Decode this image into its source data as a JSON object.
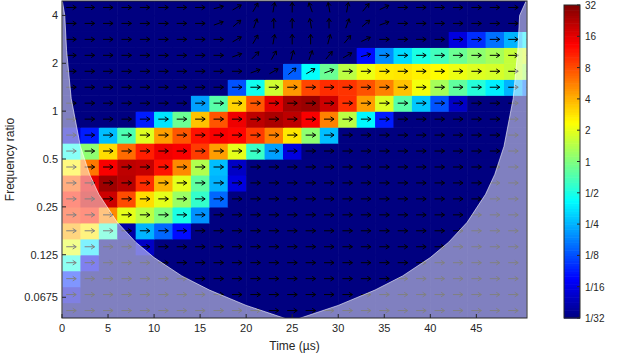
{
  "chart_data": {
    "type": "heatmap",
    "xlabel": "Time (µs)",
    "ylabel": "Frequency ratio",
    "log": "y",
    "xlim": [
      0,
      50.5
    ],
    "ylim": [
      0.05,
      4.93
    ],
    "xticks": [
      0,
      5,
      10,
      15,
      20,
      25,
      30,
      35,
      40,
      45
    ],
    "yticks": [
      0.0675,
      0.125,
      0.25,
      0.5,
      1,
      2,
      4
    ],
    "x": [
      1,
      3,
      5,
      7,
      9,
      11,
      13,
      15,
      17,
      19,
      21,
      23,
      25,
      27,
      29,
      31,
      33,
      35,
      37,
      39,
      41,
      43,
      45,
      47,
      49,
      51
    ],
    "y": [
      0.0557,
      0.0702,
      0.0884,
      0.1114,
      0.1403,
      0.1768,
      0.2227,
      0.2806,
      0.3536,
      0.4454,
      0.5612,
      0.7071,
      0.8909,
      1.1225,
      1.4142,
      1.7818,
      2.2449,
      2.8284,
      3.5636,
      4.4898
    ],
    "z": [
      [
        0.03,
        0.03,
        0.03,
        0.03,
        0.03,
        0.03,
        0.03,
        0.03,
        0.03,
        0.03,
        0.03,
        0.03,
        0.03,
        0.03,
        0.03,
        0.03,
        0.03,
        0.03,
        0.03,
        0.03,
        0.03,
        0.03,
        0.03,
        0.03,
        0.03,
        0.03
      ],
      [
        0.05,
        0.03,
        0.03,
        0.03,
        0.03,
        0.03,
        0.03,
        0.03,
        0.03,
        0.03,
        0.03,
        0.03,
        0.03,
        0.03,
        0.03,
        0.03,
        0.03,
        0.03,
        0.03,
        0.03,
        0.03,
        0.03,
        0.03,
        0.03,
        0.03,
        0.03
      ],
      [
        0.1,
        0.03,
        0.03,
        0.03,
        0.03,
        0.03,
        0.03,
        0.03,
        0.03,
        0.03,
        0.03,
        0.03,
        0.03,
        0.03,
        0.03,
        0.03,
        0.03,
        0.03,
        0.03,
        0.03,
        0.03,
        0.03,
        0.03,
        0.03,
        0.03,
        0.03
      ],
      [
        0.5,
        0.06,
        0.03,
        0.03,
        0.03,
        0.03,
        0.03,
        0.03,
        0.03,
        0.03,
        0.03,
        0.03,
        0.03,
        0.03,
        0.03,
        0.03,
        0.03,
        0.03,
        0.03,
        0.03,
        0.03,
        0.03,
        0.03,
        0.03,
        0.03,
        0.03
      ],
      [
        2,
        0.35,
        0.03,
        0.03,
        0.05,
        0.03,
        0.03,
        0.03,
        0.03,
        0.03,
        0.03,
        0.03,
        0.03,
        0.03,
        0.03,
        0.03,
        0.03,
        0.03,
        0.03,
        0.03,
        0.03,
        0.03,
        0.03,
        0.03,
        0.03,
        0.03
      ],
      [
        4.2,
        2.8,
        0.6,
        0.04,
        0.25,
        0.15,
        0.08,
        0.03,
        0.03,
        0.03,
        0.03,
        0.03,
        0.03,
        0.03,
        0.03,
        0.03,
        0.03,
        0.03,
        0.03,
        0.03,
        0.03,
        0.03,
        0.03,
        0.03,
        0.03,
        0.03
      ],
      [
        9.2,
        10.6,
        5.3,
        2,
        1.5,
        1,
        0.5,
        0.2,
        0.03,
        0.03,
        0.03,
        0.03,
        0.03,
        0.03,
        0.03,
        0.03,
        0.03,
        0.03,
        0.03,
        0.03,
        0.03,
        0.03,
        0.03,
        0.03,
        0.03,
        0.03
      ],
      [
        11,
        19,
        19,
        8,
        3,
        2,
        1.2,
        0.6,
        0.15,
        0.03,
        0.03,
        0.03,
        0.03,
        0.03,
        0.03,
        0.03,
        0.03,
        0.03,
        0.03,
        0.03,
        0.03,
        0.03,
        0.03,
        0.03,
        0.03,
        0.03
      ],
      [
        7.3,
        16,
        26,
        22,
        10,
        4,
        2,
        0.8,
        0.25,
        0.06,
        0.03,
        0.03,
        0.03,
        0.03,
        0.03,
        0.03,
        0.03,
        0.03,
        0.03,
        0.03,
        0.03,
        0.03,
        0.03,
        0.03,
        0.03,
        0.03
      ],
      [
        2.6,
        6,
        14,
        21,
        20,
        12,
        5.3,
        1.4,
        0.27,
        0.05,
        0.03,
        0.03,
        0.03,
        0.03,
        0.03,
        0.03,
        0.03,
        0.03,
        0.03,
        0.03,
        0.03,
        0.03,
        0.03,
        0.03,
        0.03,
        0.03
      ],
      [
        0.47,
        1.1,
        3,
        6.5,
        11,
        15,
        14,
        9,
        4.6,
        2,
        0.62,
        0.22,
        0.06,
        0.03,
        0.03,
        0.03,
        0.03,
        0.03,
        0.03,
        0.03,
        0.03,
        0.03,
        0.03,
        0.03,
        0.03,
        0.03
      ],
      [
        0.05,
        0.09,
        0.27,
        0.71,
        1.9,
        4.6,
        7.5,
        12,
        14,
        13,
        9,
        5.6,
        2.8,
        1.1,
        0.27,
        0.03,
        0.03,
        0.03,
        0.03,
        0.03,
        0.03,
        0.03,
        0.03,
        0.03,
        0.03,
        0.03
      ],
      [
        0.03,
        0.03,
        0.03,
        0.03,
        0.09,
        0.35,
        0.87,
        3.6,
        7.6,
        15,
        21,
        24,
        21,
        14,
        5.6,
        1.5,
        0.4,
        0.09,
        0.03,
        0.03,
        0.03,
        0.03,
        0.03,
        0.03,
        0.03,
        0.03
      ],
      [
        0.03,
        0.03,
        0.03,
        0.03,
        0.03,
        0.03,
        0.03,
        0.22,
        0.76,
        3.2,
        7.5,
        16,
        25,
        27,
        19,
        9.8,
        4.6,
        1.9,
        0.76,
        0.29,
        0.13,
        0.05,
        0.03,
        0.03,
        0.03,
        0.03
      ],
      [
        0.03,
        0.03,
        0.03,
        0.03,
        0.03,
        0.03,
        0.03,
        0.03,
        0.03,
        0.13,
        0.47,
        1.7,
        4.8,
        8.4,
        10,
        9.5,
        7.7,
        5.6,
        3.6,
        2.2,
        1.3,
        0.81,
        0.54,
        0.38,
        0.25,
        0.16
      ],
      [
        0.03,
        0.03,
        0.03,
        0.03,
        0.03,
        0.03,
        0.03,
        0.03,
        0.03,
        0.03,
        0.03,
        0.03,
        0.14,
        0.43,
        0.87,
        1.5,
        2.1,
        2.7,
        2.8,
        2.6,
        2.4,
        2.1,
        1.9,
        1.8,
        1.6,
        1.3
      ],
      [
        0.03,
        0.03,
        0.03,
        0.03,
        0.03,
        0.03,
        0.03,
        0.03,
        0.03,
        0.03,
        0.03,
        0.03,
        0.03,
        0.03,
        0.03,
        0.03,
        0.08,
        0.19,
        0.33,
        0.5,
        0.66,
        0.87,
        1.1,
        1.3,
        1.6,
        1.8
      ],
      [
        0.03,
        0.03,
        0.03,
        0.03,
        0.03,
        0.03,
        0.03,
        0.03,
        0.03,
        0.03,
        0.03,
        0.03,
        0.03,
        0.03,
        0.03,
        0.03,
        0.03,
        0.03,
        0.03,
        0.03,
        0.03,
        0.06,
        0.1,
        0.16,
        0.25,
        0.38
      ],
      [
        0.03,
        0.03,
        0.03,
        0.03,
        0.03,
        0.03,
        0.03,
        0.03,
        0.03,
        0.03,
        0.03,
        0.03,
        0.03,
        0.03,
        0.03,
        0.03,
        0.03,
        0.03,
        0.03,
        0.03,
        0.03,
        0.03,
        0.03,
        0.03,
        0.03,
        0.03
      ],
      [
        0.03,
        0.03,
        0.03,
        0.03,
        0.03,
        0.03,
        0.03,
        0.03,
        0.03,
        0.03,
        0.03,
        0.03,
        0.03,
        0.03,
        0.03,
        0.03,
        0.03,
        0.03,
        0.03,
        0.03,
        0.03,
        0.03,
        0.03,
        0.03,
        0.03,
        0.03
      ]
    ],
    "phase": [
      [
        0,
        0,
        0,
        0,
        0,
        0,
        0,
        0,
        0,
        0,
        0,
        0,
        0,
        0,
        0,
        0,
        0,
        0,
        0,
        0,
        0,
        0,
        0,
        0,
        0,
        0
      ],
      [
        0,
        0,
        0,
        0,
        0,
        0,
        0,
        0,
        0,
        0,
        0,
        0,
        0,
        0,
        0,
        0,
        0,
        0,
        0,
        0,
        0,
        0,
        0,
        0,
        0,
        0
      ],
      [
        0,
        0,
        0,
        0,
        0,
        0,
        0,
        0,
        0,
        0,
        0,
        0,
        0,
        0,
        0,
        0,
        0,
        0,
        0,
        0,
        0,
        0,
        0,
        0,
        0,
        0
      ],
      [
        0,
        0,
        0,
        0,
        0,
        0,
        0,
        0,
        0,
        0,
        0,
        0,
        0,
        0,
        0,
        0,
        0,
        0,
        0,
        0,
        0,
        0,
        0,
        0,
        0,
        0
      ],
      [
        0,
        0,
        0,
        0,
        0,
        0,
        0,
        0,
        0,
        0,
        0,
        0,
        0,
        0,
        0,
        0,
        0,
        0,
        0,
        0,
        0,
        0,
        0,
        0,
        0,
        0
      ],
      [
        0,
        0,
        0,
        0,
        0,
        0,
        0,
        0,
        0,
        0,
        0,
        0,
        0,
        0,
        0,
        0,
        0,
        0,
        0,
        0,
        0,
        0,
        0,
        0,
        0,
        0
      ],
      [
        0,
        0,
        0,
        0,
        0,
        0,
        0,
        0,
        0,
        0,
        0,
        0,
        0,
        0,
        0,
        0,
        0,
        0,
        0,
        0,
        0,
        0,
        0,
        0,
        0,
        0
      ],
      [
        0,
        0,
        0,
        0,
        0,
        0,
        0,
        0,
        0,
        0,
        0,
        0,
        0,
        0,
        0,
        0,
        0,
        0,
        0,
        0,
        0,
        0,
        0,
        0,
        0,
        0
      ],
      [
        0,
        0,
        0,
        0,
        0,
        0,
        0,
        0,
        0,
        0,
        0,
        0,
        0,
        0,
        0,
        0,
        0,
        0,
        0,
        0,
        0,
        0,
        0,
        0,
        0,
        0
      ],
      [
        0,
        0,
        0,
        0,
        0,
        0,
        0,
        0,
        0,
        0,
        0,
        0,
        0,
        0,
        0,
        0,
        0,
        0,
        0,
        0,
        0,
        0,
        0,
        0,
        0,
        0
      ],
      [
        0,
        0,
        0,
        0,
        0,
        0,
        0,
        0,
        0,
        0,
        0,
        0,
        0,
        0,
        0,
        0,
        0,
        0,
        0,
        0,
        0,
        0,
        0,
        0,
        0,
        0
      ],
      [
        0,
        0,
        0,
        0,
        0,
        0,
        0,
        0,
        0,
        0,
        0,
        0,
        0,
        0,
        0,
        0,
        0,
        0,
        0,
        0,
        0,
        0,
        0,
        0,
        0,
        0
      ],
      [
        0,
        0,
        0,
        0,
        0,
        0,
        0,
        0,
        0,
        0,
        0,
        0,
        0,
        0,
        0,
        0,
        0,
        0,
        0,
        0,
        0,
        0,
        0,
        0,
        0,
        0
      ],
      [
        0,
        0,
        0,
        0,
        0,
        0,
        0,
        0,
        0,
        0,
        0,
        0,
        0,
        0,
        0,
        0,
        0,
        0,
        0,
        0,
        0,
        0,
        0,
        0,
        0,
        0
      ],
      [
        0,
        0,
        0,
        0,
        0,
        0,
        0,
        0,
        0,
        0,
        0,
        0,
        0,
        0,
        0,
        0,
        0,
        0,
        0,
        0,
        0,
        0,
        0,
        0,
        0,
        0
      ],
      [
        0,
        0,
        0,
        0,
        0,
        0,
        0,
        0,
        0,
        0,
        20,
        30,
        40,
        30,
        20,
        0,
        0,
        0,
        0,
        0,
        0,
        0,
        0,
        0,
        0,
        0
      ],
      [
        0,
        0,
        0,
        0,
        0,
        0,
        0,
        0,
        0,
        20,
        45,
        60,
        75,
        70,
        50,
        30,
        15,
        0,
        0,
        0,
        0,
        0,
        0,
        0,
        0,
        0
      ],
      [
        0,
        0,
        0,
        0,
        0,
        0,
        0,
        0,
        0,
        30,
        60,
        80,
        90,
        90,
        75,
        50,
        25,
        0,
        0,
        0,
        0,
        0,
        0,
        0,
        0,
        0
      ],
      [
        0,
        0,
        0,
        0,
        0,
        0,
        0,
        0,
        20,
        40,
        70,
        90,
        90,
        100,
        90,
        70,
        40,
        20,
        0,
        0,
        0,
        0,
        0,
        0,
        0,
        0
      ],
      [
        0,
        0,
        0,
        0,
        0,
        0,
        0,
        0,
        15,
        30,
        60,
        80,
        90,
        110,
        100,
        80,
        50,
        25,
        0,
        0,
        0,
        0,
        0,
        0,
        0,
        0
      ]
    ],
    "coi": {
      "x": [
        0.3,
        0.5,
        1,
        2,
        3,
        4,
        6,
        8,
        10,
        13,
        16,
        20,
        25,
        30,
        34,
        37,
        40,
        42,
        44,
        46,
        47,
        48,
        49,
        49.5,
        49.7
      ],
      "y": [
        4.0,
        2.4,
        1.2,
        0.6,
        0.4,
        0.3,
        0.2,
        0.15,
        0.12,
        0.092,
        0.075,
        0.06,
        0.048,
        0.06,
        0.075,
        0.092,
        0.12,
        0.15,
        0.2,
        0.3,
        0.4,
        0.6,
        1.2,
        2.4,
        4.0
      ]
    },
    "colorbar": {
      "range": [
        0.03125,
        32
      ],
      "ticks": [
        {
          "value": 0.03125,
          "label": "1/32"
        },
        {
          "value": 0.0625,
          "label": "1/16"
        },
        {
          "value": 0.125,
          "label": "1/8"
        },
        {
          "value": 0.25,
          "label": "1/4"
        },
        {
          "value": 0.5,
          "label": "1/2"
        },
        1,
        2,
        4,
        8,
        16,
        32
      ]
    }
  }
}
